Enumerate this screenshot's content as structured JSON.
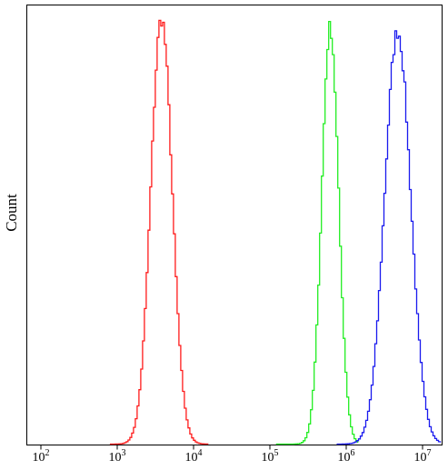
{
  "chart_data": {
    "type": "line",
    "title": "",
    "xlabel": "",
    "ylabel": "Count",
    "x_scale": "log",
    "xlim": [
      100,
      20000000
    ],
    "ylim": [
      0,
      1.0
    ],
    "grid": false,
    "legend": "none",
    "x_ticks": [
      {
        "value": 100,
        "base": "10",
        "exp": "2"
      },
      {
        "value": 1000,
        "base": "10",
        "exp": "3"
      },
      {
        "value": 10000,
        "base": "10",
        "exp": "4"
      },
      {
        "value": 100000,
        "base": "10",
        "exp": "5"
      },
      {
        "value": 1000000,
        "base": "10",
        "exp": "6"
      },
      {
        "value": 10000000,
        "base": "10",
        "exp": "7"
      }
    ],
    "series": [
      {
        "color": "#ff1a1a",
        "shape": "gaussian",
        "peak_x": 3700,
        "peak_y": 0.99,
        "sigma_log10": 0.14,
        "baseline_from": 800,
        "baseline_to": 16000
      },
      {
        "color": "#22ee22",
        "shape": "gaussian",
        "peak_x": 600000,
        "peak_y": 0.97,
        "sigma_log10": 0.11,
        "baseline_from": 120000,
        "baseline_to": 1450000
      },
      {
        "color": "#1a1aee",
        "shape": "gaussian",
        "peak_x": 4600000,
        "peak_y": 0.96,
        "sigma_log10": 0.17,
        "baseline_from": 750000,
        "baseline_to": 19000000
      }
    ]
  }
}
